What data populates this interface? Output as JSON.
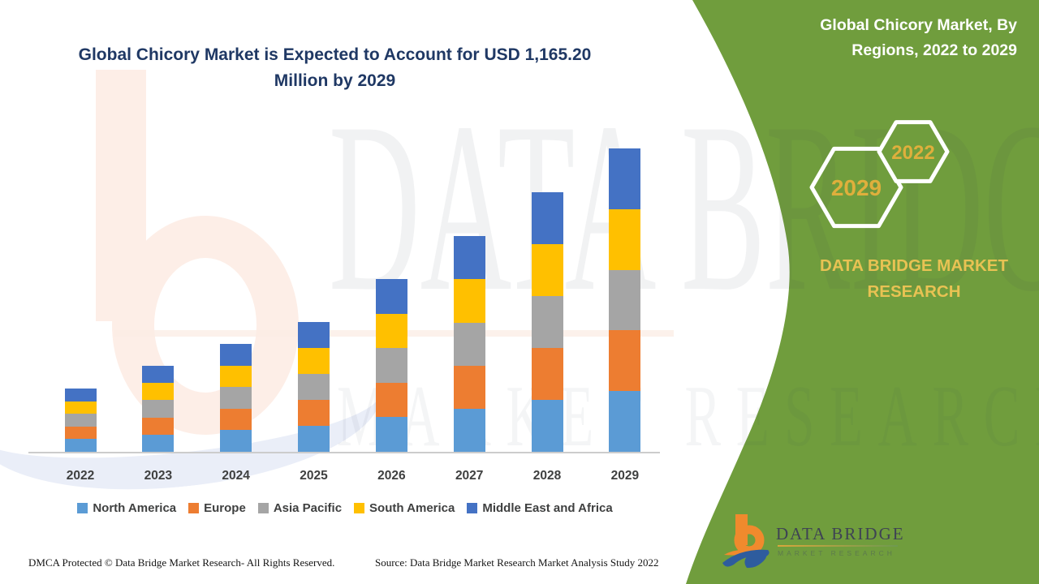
{
  "header": {
    "title_line1": "Global Chicory Market is Expected to Account for USD 1,165.20",
    "title_line2": "Million by 2029",
    "title_color": "#1F3864"
  },
  "side_panel": {
    "bg_color": "#709D3D",
    "heading_line1": "Global Chicory Market, By",
    "heading_line2": "Regions, 2022 to 2029",
    "hexagons": [
      {
        "label": "2029"
      },
      {
        "label": "2022"
      }
    ],
    "gold_year_color": "#DFAF3C",
    "gold_brand_color": "#E8C253",
    "brand_line1": "DATA BRIDGE MARKET",
    "brand_line2": "RESEARCH"
  },
  "watermark": {
    "line1": "DATA BRIDGE",
    "line2": "MARKET RESEARCH"
  },
  "logo": {
    "name": "DATA BRIDGE",
    "tagline": "MARKET RESEARCH"
  },
  "footer": {
    "dmca": "DMCA Protected © Data Bridge Market Research- All Rights Reserved.",
    "source": "Source: Data Bridge Market Research Market Analysis Study 2022"
  },
  "chart_data": {
    "type": "bar",
    "stacked": true,
    "unit": "USD Million",
    "categories": [
      "2022",
      "2023",
      "2024",
      "2025",
      "2026",
      "2027",
      "2028",
      "2029"
    ],
    "totals": [
      243.0,
      330.0,
      414.0,
      498.0,
      663.0,
      828.0,
      996.0,
      1165.2
    ],
    "series": [
      {
        "name": "North America",
        "color": "#5B9BD5",
        "values": [
          48.6,
          66.0,
          82.8,
          99.6,
          132.6,
          165.6,
          199.2,
          233.04
        ]
      },
      {
        "name": "Europe",
        "color": "#ED7D31",
        "values": [
          48.6,
          66.0,
          82.8,
          99.6,
          132.6,
          165.6,
          199.2,
          233.04
        ]
      },
      {
        "name": "Asia Pacific",
        "color": "#A5A5A5",
        "values": [
          48.6,
          66.0,
          82.8,
          99.6,
          132.6,
          165.6,
          199.2,
          233.04
        ]
      },
      {
        "name": "South America",
        "color": "#FFC000",
        "values": [
          48.6,
          66.0,
          82.8,
          99.6,
          132.6,
          165.6,
          199.2,
          233.04
        ]
      },
      {
        "name": "Middle East and Africa",
        "color": "#4472C4",
        "values": [
          48.6,
          66.0,
          82.8,
          99.6,
          132.6,
          165.6,
          199.2,
          233.04
        ]
      }
    ],
    "title": "Global Chicory Market is Expected to Account for USD 1,165.20 Million by 2029",
    "xlabel": "",
    "ylabel": "",
    "ylim": [
      0,
      1200
    ],
    "gridlines": false,
    "y_axis_visible": false,
    "legend_position": "bottom"
  }
}
